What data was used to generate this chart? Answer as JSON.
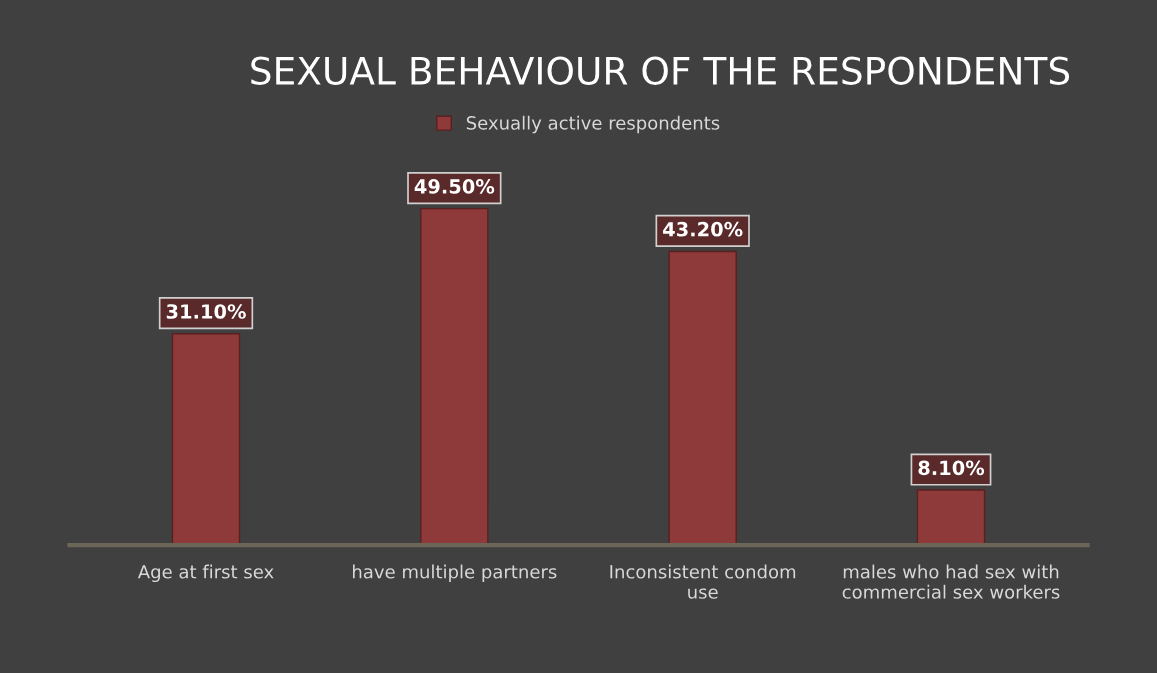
{
  "chart_data": {
    "type": "bar",
    "title": "SEXUAL BEHAVIOUR OF THE RESPONDENTS",
    "categories": [
      "Age at first sex",
      "have multiple partners",
      "Inconsistent condom use",
      "males who had sex with commercial sex workers"
    ],
    "series": [
      {
        "name": "Sexually active respondents",
        "color": "#8f3a3a",
        "values": [
          31.1,
          49.5,
          43.2,
          8.1
        ],
        "value_labels": [
          "31.10%",
          "49.50%",
          "43.20%",
          "8.10%"
        ]
      }
    ],
    "legend": "top",
    "grid": false,
    "tick_labels": "x"
  }
}
